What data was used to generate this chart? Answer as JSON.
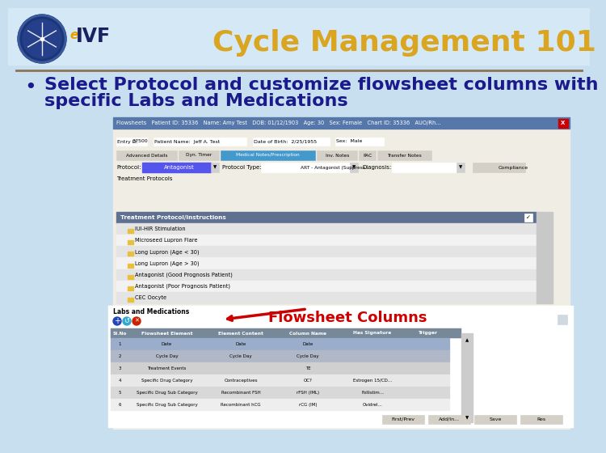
{
  "title": "Cycle Management 101",
  "title_color": "#DAA520",
  "title_fontsize": 26,
  "bullet_line1": "Select Protocol and customize flowsheet columns with",
  "bullet_line2": "specific Labs and Medications",
  "bullet_fontsize": 16,
  "bullet_color": "#1a1a8c",
  "bg_color": "#c8dff0",
  "header_bg": "#d5e8f5",
  "separator_color": "#8B7355",
  "annotation_text": "Flowsheet Columns",
  "annotation_color": "#cc0000",
  "annotation_fontsize": 13,
  "win_titlebar": "#5577aa",
  "win_bg": "#ece9d8",
  "tab_active": "#3388bb",
  "protocol_field": "#5555ee",
  "list_header": "#6688aa",
  "list_row_odd": "#e8e8e8",
  "list_row_even": "#f5f5f5",
  "tbl_header": "#778899",
  "tbl_row1": "#aab8cc",
  "tbl_row2": "#cccccc",
  "tbl_row3": "#e8e8e8",
  "tbl_row4": "#f0f0f0",
  "red_border": "#cc0000",
  "protocols": [
    "IUI-HIR Stimulation",
    "Microseed Lupron Flare",
    "Long Lupron (Age < 30)",
    "Long Lupron (Age > 30)",
    "Antagonist (Good Prognosis Patient)",
    "Antagonist (Poor Prognosis Patient)",
    "CEC Oocyte"
  ],
  "tbl_rows": [
    [
      "1",
      "Date",
      "Date",
      "Date",
      "",
      ""
    ],
    [
      "2",
      "Cycle Day",
      "Cycle Day",
      "Cycle Day",
      "",
      ""
    ],
    [
      "3",
      "Treatment Events",
      "",
      "TE",
      "",
      ""
    ],
    [
      "4",
      "Specific Drug Category",
      "Contraceptives",
      "OC?",
      "Estrogen 15/CD...",
      ""
    ],
    [
      "5",
      "Specific Drug Sub Category",
      "Recombinant FSH",
      "rFSH (IML)",
      "Follistim...",
      ""
    ],
    [
      "6",
      "Specific Drug Sub Category",
      "Recombinant hCG",
      "rCG (IM)",
      "Ovidrel...",
      ""
    ]
  ],
  "bottom_buttons": [
    "First/Prev",
    "Add/In...",
    "Save",
    "Res"
  ]
}
